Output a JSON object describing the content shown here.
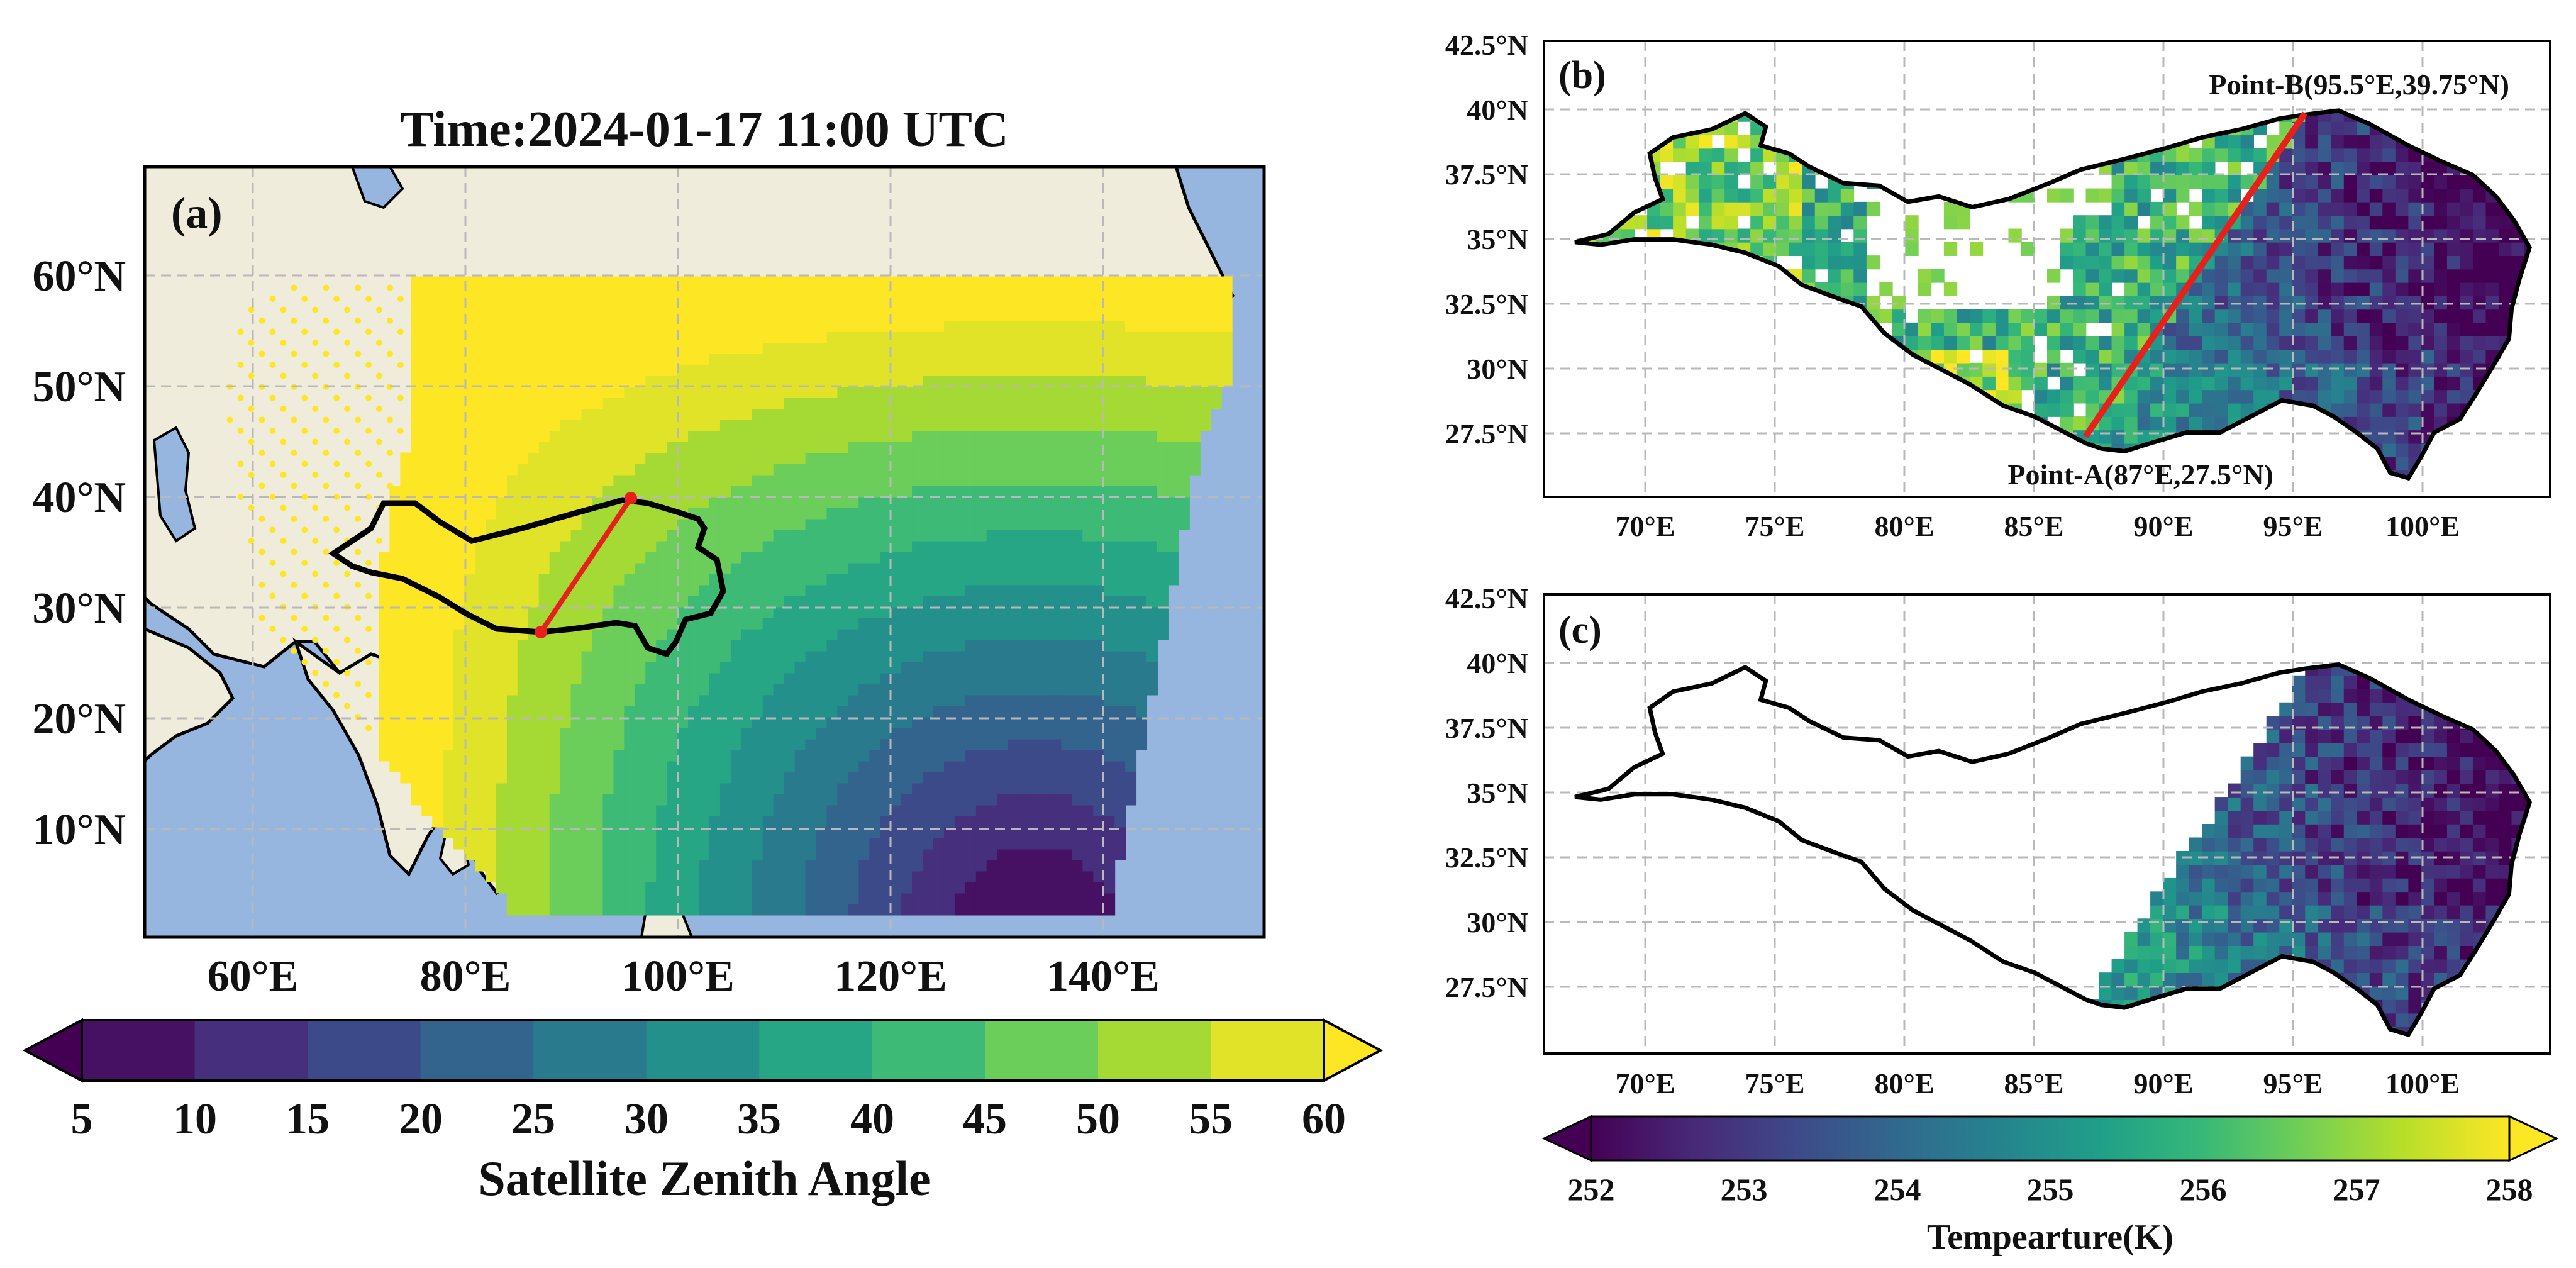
{
  "panel_a": {
    "title": "Time:2024-01-17 11:00 UTC",
    "label": "(a)",
    "lat_ticks": [
      "60°N",
      "50°N",
      "40°N",
      "30°N",
      "20°N",
      "10°N"
    ],
    "lon_ticks": [
      "60°E",
      "80°E",
      "100°E",
      "120°E",
      "140°E"
    ]
  },
  "colorbar_a": {
    "label": "Satellite Zenith Angle",
    "ticks": [
      "5",
      "10",
      "15",
      "20",
      "25",
      "30",
      "35",
      "40",
      "45",
      "50",
      "55",
      "60"
    ]
  },
  "panel_b": {
    "label": "(b)",
    "point_a": "Point-A(87°E,27.5°N)",
    "point_b": "Point-B(95.5°E,39.75°N)",
    "lat_ticks": [
      "42.5°N",
      "40°N",
      "37.5°N",
      "35°N",
      "32.5°N",
      "30°N",
      "27.5°N"
    ],
    "lon_ticks": [
      "70°E",
      "75°E",
      "80°E",
      "85°E",
      "90°E",
      "95°E",
      "100°E"
    ]
  },
  "panel_c": {
    "label": "(c)",
    "lat_ticks": [
      "42.5°N",
      "40°N",
      "37.5°N",
      "35°N",
      "32.5°N",
      "30°N",
      "27.5°N"
    ],
    "lon_ticks": [
      "70°E",
      "75°E",
      "80°E",
      "85°E",
      "90°E",
      "95°E",
      "100°E"
    ]
  },
  "colorbar_bc": {
    "label": "Tempearture(K)",
    "ticks": [
      "252",
      "253",
      "254",
      "255",
      "256",
      "257",
      "258"
    ]
  },
  "chart_data": [
    {
      "type": "heatmap",
      "panel": "a",
      "title": "Time:2024-01-17 11:00 UTC",
      "variable": "Satellite Zenith Angle",
      "levels": [
        5,
        10,
        15,
        20,
        25,
        30,
        35,
        40,
        45,
        50,
        55,
        60
      ],
      "xlim": [
        50,
        155
      ],
      "ylim": [
        0,
        70
      ],
      "sub_satellite_point": [
        133,
        0
      ],
      "transect": {
        "start": [
          87,
          27.5
        ],
        "end": [
          95.5,
          39.75
        ]
      }
    },
    {
      "type": "heatmap",
      "panel": "b",
      "variable": "Temperature (K)",
      "xlim": [
        66,
        105
      ],
      "ylim": [
        25.5,
        42.5
      ],
      "transect": {
        "start": [
          87,
          27.5
        ],
        "end": [
          95.5,
          39.75
        ]
      }
    },
    {
      "type": "heatmap",
      "panel": "c",
      "variable": "Temperature (K)",
      "xlim": [
        66,
        105
      ],
      "ylim": [
        25.5,
        42.5
      ]
    },
    {
      "type": "colorbar",
      "label": "Tempearture(K)",
      "range": [
        252,
        258
      ]
    }
  ],
  "colors": {
    "land": "#efecdc",
    "ocean": "#96b6df",
    "transect": "#e8201c",
    "viridis": [
      "#440154",
      "#482878",
      "#3e4989",
      "#31688e",
      "#26828e",
      "#1f9e89",
      "#35b779",
      "#6ece58",
      "#b5de2b",
      "#fde725"
    ]
  }
}
